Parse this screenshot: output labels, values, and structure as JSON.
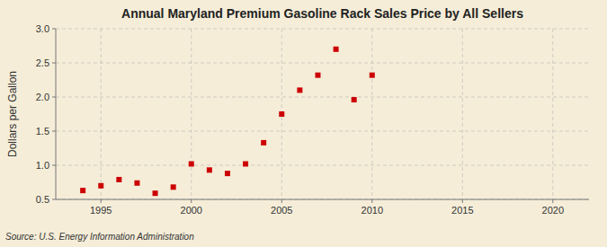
{
  "chart_data": {
    "type": "scatter",
    "title": "Annual Maryland Premium Gasoline Rack Sales Price by All Sellers",
    "ylabel": "Dollars per Gallon",
    "annotations": [
      "Source: U.S. Energy Information Administration"
    ],
    "x": [
      1994,
      1995,
      1996,
      1997,
      1998,
      1999,
      2000,
      2001,
      2002,
      2003,
      2004,
      2005,
      2006,
      2007,
      2008,
      2009,
      2010
    ],
    "values": [
      0.63,
      0.7,
      0.79,
      0.74,
      0.59,
      0.68,
      1.02,
      0.93,
      0.88,
      1.02,
      1.33,
      1.75,
      2.1,
      2.32,
      2.7,
      1.96,
      2.32
    ],
    "color": "#cc0000",
    "marker": "square",
    "xlim": [
      1992.5,
      2022
    ],
    "ylim": [
      0.5,
      3.0
    ],
    "xticks": [
      1995,
      2000,
      2005,
      2010,
      2015,
      2020
    ],
    "yticks": [
      0.5,
      {
        "value": 1,
        "label": "1.0"
      },
      1.5,
      {
        "value": 2,
        "label": "2.0"
      },
      2.5,
      {
        "value": 3,
        "label": "3.0"
      }
    ],
    "grid": true
  }
}
